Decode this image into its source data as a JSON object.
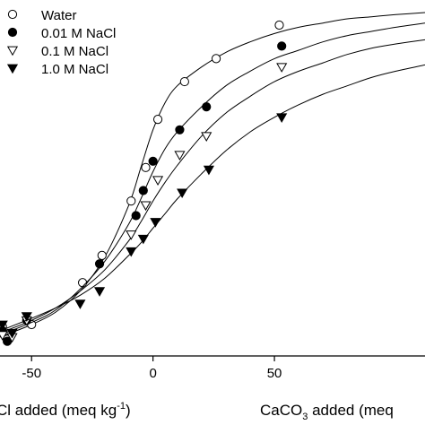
{
  "chart_data": {
    "type": "scatter",
    "xlim": [
      -63,
      112
    ],
    "ylim": [
      -5,
      165
    ],
    "x_ticks": [
      -50,
      0,
      50
    ],
    "x_tick_labels": [
      "-50",
      "0",
      "50"
    ],
    "xlabel_left": "Cl added (meq kg",
    "xlabel_left_sup": "-1",
    "xlabel_left_end": ")",
    "xlabel_right_pre": "CaCO",
    "xlabel_right_sub": "3",
    "xlabel_right_post": " added (meq",
    "legend_position": "top-left",
    "grid": false,
    "series": [
      {
        "name": "Water",
        "marker": "circle-open",
        "points": [
          [
            -62,
            9
          ],
          [
            -60,
            3
          ],
          [
            -50,
            10
          ],
          [
            -29,
            30
          ],
          [
            -21,
            43
          ],
          [
            -9,
            69
          ],
          [
            -3,
            85
          ],
          [
            2,
            108
          ],
          [
            13,
            126
          ],
          [
            26,
            137
          ],
          [
            52,
            153
          ]
        ],
        "curve": [
          [
            -63,
            4
          ],
          [
            -50,
            10
          ],
          [
            -40,
            16
          ],
          [
            -30,
            26
          ],
          [
            -20,
            42
          ],
          [
            -10,
            67
          ],
          [
            -5,
            85
          ],
          [
            0,
            103
          ],
          [
            5,
            116
          ],
          [
            10,
            124
          ],
          [
            20,
            133
          ],
          [
            30,
            140
          ],
          [
            40,
            145
          ],
          [
            50,
            149
          ],
          [
            60,
            152
          ],
          [
            70,
            154
          ],
          [
            80,
            156
          ],
          [
            90,
            157
          ],
          [
            100,
            158
          ],
          [
            112,
            159
          ]
        ]
      },
      {
        "name": "0.01 M NaCl",
        "marker": "circle-filled",
        "points": [
          [
            -62,
            7
          ],
          [
            -60,
            2
          ],
          [
            -52,
            12
          ],
          [
            -22,
            39
          ],
          [
            -7,
            62
          ],
          [
            -4,
            74
          ],
          [
            0,
            88
          ],
          [
            11,
            103
          ],
          [
            22,
            114
          ],
          [
            53,
            143
          ]
        ],
        "curve": [
          [
            -63,
            5
          ],
          [
            -50,
            11
          ],
          [
            -40,
            17
          ],
          [
            -30,
            27
          ],
          [
            -20,
            40
          ],
          [
            -10,
            58
          ],
          [
            -5,
            70
          ],
          [
            0,
            83
          ],
          [
            5,
            94
          ],
          [
            10,
            102
          ],
          [
            20,
            114
          ],
          [
            30,
            124
          ],
          [
            40,
            131
          ],
          [
            50,
            137
          ],
          [
            60,
            141
          ],
          [
            70,
            145
          ],
          [
            80,
            148
          ],
          [
            90,
            150
          ],
          [
            100,
            152
          ],
          [
            112,
            154
          ]
        ]
      },
      {
        "name": "0.1 M NaCl",
        "marker": "triangle-down-open",
        "points": [
          [
            -62,
            5
          ],
          [
            -58,
            4
          ],
          [
            -52,
            12
          ],
          [
            -9,
            53
          ],
          [
            -3,
            67
          ],
          [
            2,
            79
          ],
          [
            11,
            91
          ],
          [
            22,
            100
          ],
          [
            53,
            133
          ]
        ],
        "curve": [
          [
            -63,
            6
          ],
          [
            -50,
            12
          ],
          [
            -40,
            18
          ],
          [
            -30,
            26
          ],
          [
            -20,
            36
          ],
          [
            -10,
            50
          ],
          [
            -5,
            59
          ],
          [
            0,
            69
          ],
          [
            5,
            78
          ],
          [
            10,
            86
          ],
          [
            20,
            100
          ],
          [
            30,
            111
          ],
          [
            40,
            119
          ],
          [
            50,
            126
          ],
          [
            60,
            131
          ],
          [
            70,
            135
          ],
          [
            80,
            139
          ],
          [
            90,
            142
          ],
          [
            100,
            144
          ],
          [
            112,
            146
          ]
        ]
      },
      {
        "name": "1.0 M NaCl",
        "marker": "triangle-down-filled",
        "points": [
          [
            -62,
            10
          ],
          [
            -58,
            6
          ],
          [
            -52,
            14
          ],
          [
            -30,
            20
          ],
          [
            -22,
            26
          ],
          [
            -9,
            45
          ],
          [
            -4,
            51
          ],
          [
            1,
            59
          ],
          [
            12,
            73
          ],
          [
            23,
            84
          ],
          [
            53,
            109
          ]
        ],
        "curve": [
          [
            -63,
            7
          ],
          [
            -50,
            13
          ],
          [
            -40,
            18
          ],
          [
            -30,
            24
          ],
          [
            -20,
            32
          ],
          [
            -10,
            43
          ],
          [
            -5,
            49
          ],
          [
            0,
            56
          ],
          [
            5,
            63
          ],
          [
            10,
            70
          ],
          [
            20,
            82
          ],
          [
            30,
            93
          ],
          [
            40,
            102
          ],
          [
            50,
            109
          ],
          [
            60,
            115
          ],
          [
            70,
            120
          ],
          [
            80,
            124
          ],
          [
            90,
            128
          ],
          [
            100,
            131
          ],
          [
            112,
            134
          ]
        ]
      }
    ]
  }
}
